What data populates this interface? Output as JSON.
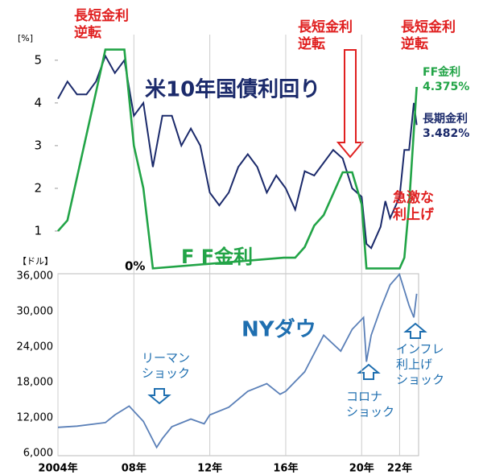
{
  "chart_data": [
    {
      "type": "line",
      "y_unit": "[%]",
      "xlim": [
        2004,
        2023
      ],
      "ylim": [
        0,
        5.6
      ],
      "yticks": [
        1,
        2,
        3,
        4,
        5
      ],
      "xticks": [
        2008,
        2012,
        2016,
        2020
      ],
      "grid": true,
      "series": [
        {
          "name": "米10年国債利回り",
          "color": "#1b2a6b",
          "x": [
            2004,
            2004.5,
            2005,
            2005.5,
            2006,
            2006.5,
            2007,
            2007.5,
            2008,
            2008.5,
            2009,
            2009.5,
            2010,
            2010.5,
            2011,
            2011.5,
            2012,
            2012.5,
            2013,
            2013.5,
            2014,
            2014.5,
            2015,
            2015.5,
            2016,
            2016.5,
            2017,
            2017.5,
            2018,
            2018.5,
            2019,
            2019.5,
            2020,
            2020.25,
            2020.5,
            2021,
            2021.25,
            2021.5,
            2022,
            2022.25,
            2022.5,
            2022.75,
            2022.9
          ],
          "values": [
            4.1,
            4.5,
            4.2,
            4.2,
            4.5,
            5.1,
            4.7,
            5.0,
            3.7,
            4.0,
            2.5,
            3.7,
            3.7,
            3.0,
            3.4,
            3.0,
            1.9,
            1.6,
            1.9,
            2.5,
            2.8,
            2.5,
            1.9,
            2.3,
            2.0,
            1.5,
            2.4,
            2.3,
            2.6,
            2.9,
            2.7,
            2.0,
            1.8,
            0.7,
            0.6,
            1.1,
            1.7,
            1.3,
            1.8,
            2.9,
            2.9,
            4.0,
            3.482
          ]
        },
        {
          "name": "F F金利",
          "color": "#22a447",
          "x": [
            2004,
            2004.5,
            2005,
            2005.5,
            2006,
            2006.5,
            2007,
            2007.5,
            2008,
            2008.5,
            2009,
            2015.9,
            2016.5,
            2017,
            2017.5,
            2018,
            2018.5,
            2019,
            2019.5,
            2020,
            2020.25,
            2022,
            2022.25,
            2022.5,
            2022.9
          ],
          "values": [
            1,
            1.25,
            2.25,
            3.25,
            4.25,
            5.25,
            5.25,
            5.25,
            3.0,
            2.0,
            0.125,
            0.375,
            0.375,
            0.625,
            1.125,
            1.375,
            1.875,
            2.375,
            2.375,
            1.625,
            0.125,
            0.125,
            0.375,
            1.625,
            4.375
          ]
        }
      ],
      "annotations": [
        {
          "lines": [
            "長短金利",
            "逆転"
          ],
          "color": "#e02020"
        },
        {
          "lines": [
            "長短金利",
            "逆転"
          ],
          "color": "#e02020"
        },
        {
          "lines": [
            "長短金利",
            "逆転"
          ],
          "color": "#e02020"
        },
        {
          "lines": [
            "急激な",
            "利上げ"
          ],
          "color": "#e02020"
        },
        {
          "lines": [
            "FF金利",
            "4.375%"
          ],
          "color": "#22a447"
        },
        {
          "lines": [
            "長期金利",
            "3.482%"
          ],
          "color": "#1b2a6b"
        },
        {
          "lines": [
            "0%"
          ],
          "color": "#000000"
        }
      ]
    },
    {
      "type": "line",
      "y_unit": "【ドル】",
      "xlim": [
        2004,
        2023
      ],
      "ylim": [
        5600,
        36400
      ],
      "yticks": [
        {
          "value": 6000,
          "label": "6,000"
        },
        {
          "value": 12000,
          "label": "12,000"
        },
        {
          "value": 18000,
          "label": "18,000"
        },
        {
          "value": 24000,
          "label": "24,000"
        },
        {
          "value": 30000,
          "label": "30,000"
        },
        {
          "value": 36000,
          "label": "36,000"
        }
      ],
      "xticks": [
        {
          "value": 2004,
          "label": "2004年"
        },
        {
          "value": 2008,
          "label": "08年"
        },
        {
          "value": 2012,
          "label": "12年"
        },
        {
          "value": 2016,
          "label": "16年"
        },
        {
          "value": 2020,
          "label": "20年"
        },
        {
          "value": 2022,
          "label": "22年"
        }
      ],
      "grid": true,
      "series": [
        {
          "name": "NYダウ",
          "color": "#5b80b8",
          "x": [
            2004,
            2005,
            2006,
            2006.5,
            2007,
            2007.75,
            2008.5,
            2009.2,
            2009.5,
            2010,
            2011,
            2011.7,
            2012,
            2013,
            2014,
            2015,
            2015.7,
            2016,
            2017,
            2018,
            2018.9,
            2019.5,
            2020.1,
            2020.25,
            2020.5,
            2021,
            2021.5,
            2021.99,
            2022.5,
            2022.75,
            2022.9
          ],
          "values": [
            10400,
            10600,
            11000,
            11200,
            12500,
            14000,
            11400,
            7000,
            8500,
            10500,
            11800,
            11000,
            12500,
            13800,
            16500,
            17800,
            16000,
            16500,
            19800,
            26000,
            23300,
            27000,
            29000,
            21500,
            26000,
            30500,
            34500,
            36300,
            31000,
            29000,
            33000
          ]
        }
      ],
      "annotations": [
        {
          "lines": [
            "リーマン",
            "ショック"
          ],
          "color": "#1f6fb0"
        },
        {
          "lines": [
            "コロナ",
            "ショック"
          ],
          "color": "#1f6fb0"
        },
        {
          "lines": [
            "インフレ",
            "利上げ",
            "ショック"
          ],
          "color": "#1f6fb0"
        }
      ]
    }
  ]
}
